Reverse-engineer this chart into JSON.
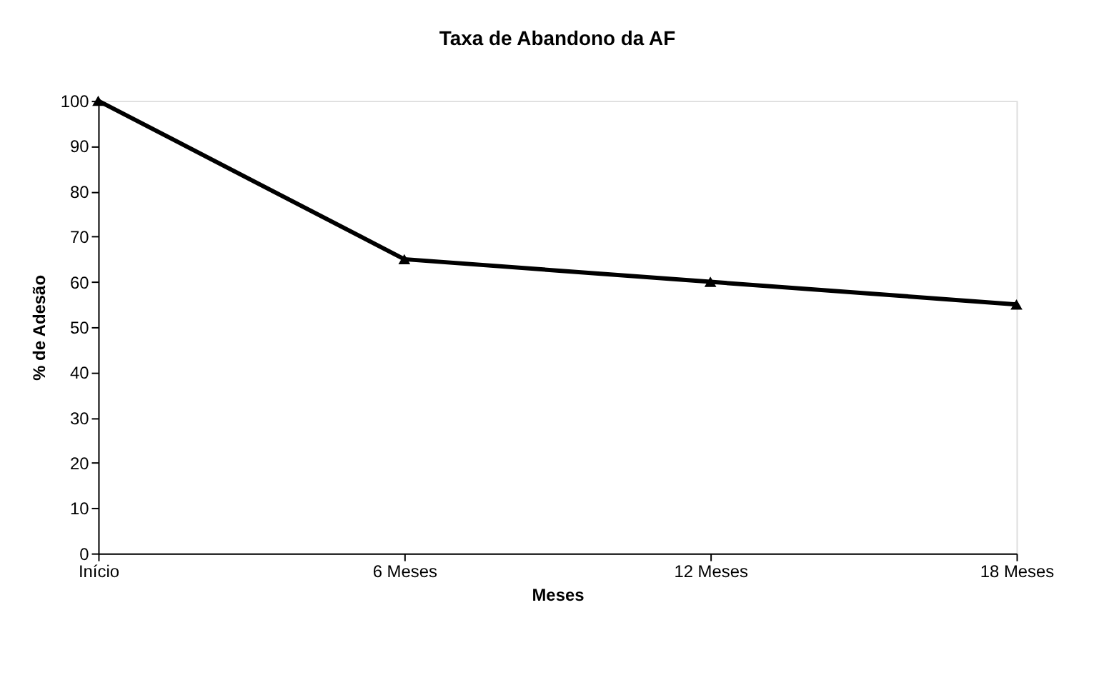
{
  "chart_data": {
    "type": "line",
    "title": "Taxa de Abandono da AF",
    "xlabel": "Meses",
    "ylabel": "% de Adesão",
    "categories": [
      "Início",
      "6 Meses",
      "12 Meses",
      "18 Meses"
    ],
    "series": [
      {
        "color": "#000000",
        "values": [
          100,
          65,
          60,
          55
        ]
      }
    ],
    "ylim": [
      0,
      100
    ],
    "yticks": [
      0,
      10,
      20,
      30,
      40,
      50,
      60,
      70,
      80,
      90,
      100
    ],
    "grid": false,
    "legend": false,
    "marker": "triangle",
    "line_style": "solid"
  }
}
